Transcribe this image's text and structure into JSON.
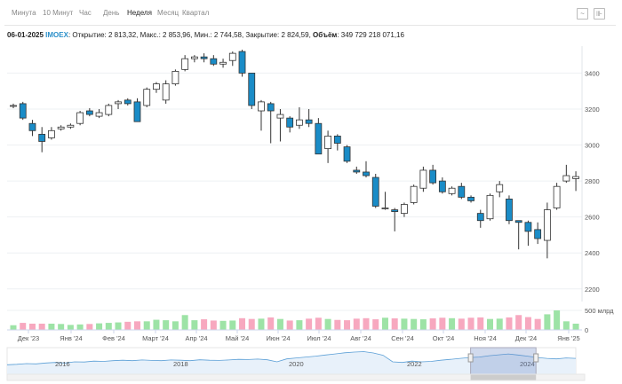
{
  "tabs": {
    "items": [
      "Минута",
      "10 Минут",
      "Час",
      "День",
      "Неделя",
      "Месяц",
      "Квартал"
    ],
    "active": "Неделя",
    "icons": [
      "line-chart-icon",
      "candlestick-chart-icon"
    ]
  },
  "info": {
    "date": "06-01-2025",
    "ticker": "IMOEX",
    "ohlc": ": Открытие: 2 813,32, Макс.: 2 853,96, Мин.: 2 744,58, Закрытие: 2 824,59,",
    "volume_label": "Объём",
    "volume_value": ": 349 729 218 071,16"
  },
  "colors": {
    "up": "#ffffff",
    "down": "#1a8cc7",
    "vol_up": "#9de3a6",
    "vol_down": "#f7a8bf",
    "ticker": "#2a8fc9"
  },
  "chart_data": {
    "type": "candlestick",
    "y_ticks": [
      2200,
      2400,
      2600,
      2800,
      3000,
      3200,
      3400
    ],
    "ylim": [
      2130,
      3550
    ],
    "volume_label": "500 млрд",
    "volume_ticks": [
      "500 млрд",
      "0"
    ],
    "x_labels": [
      "Дек '23",
      "Янв '24",
      "Фев '24",
      "Март '24",
      "Апр '24",
      "Май '24",
      "Июн '24",
      "Июл '24",
      "Авг '24",
      "Сен '24",
      "Окт '24",
      "Ноя '24",
      "Дек '24",
      "Янв '25"
    ],
    "navigator_labels": [
      "2016",
      "2018",
      "2020",
      "2022",
      "2024"
    ],
    "candles": [
      [
        3215,
        3230,
        3205,
        3220
      ],
      [
        3230,
        3240,
        3140,
        3150
      ],
      [
        3120,
        3140,
        3050,
        3080
      ],
      [
        3060,
        3100,
        2960,
        3020
      ],
      [
        3040,
        3100,
        3030,
        3080
      ],
      [
        3090,
        3110,
        3080,
        3100
      ],
      [
        3100,
        3120,
        3090,
        3110
      ],
      [
        3120,
        3190,
        3110,
        3180
      ],
      [
        3190,
        3205,
        3160,
        3170
      ],
      [
        3160,
        3200,
        3150,
        3180
      ],
      [
        3170,
        3230,
        3160,
        3220
      ],
      [
        3230,
        3250,
        3200,
        3240
      ],
      [
        3250,
        3260,
        3220,
        3230
      ],
      [
        3240,
        3260,
        3130,
        3130
      ],
      [
        3220,
        3320,
        3210,
        3310
      ],
      [
        3310,
        3350,
        3290,
        3340
      ],
      [
        3250,
        3360,
        3230,
        3340
      ],
      [
        3340,
        3420,
        3330,
        3410
      ],
      [
        3420,
        3500,
        3410,
        3480
      ],
      [
        3480,
        3500,
        3460,
        3490
      ],
      [
        3490,
        3510,
        3460,
        3480
      ],
      [
        3480,
        3500,
        3440,
        3450
      ],
      [
        3450,
        3480,
        3430,
        3460
      ],
      [
        3470,
        3520,
        3440,
        3510
      ],
      [
        3520,
        3530,
        3380,
        3400
      ],
      [
        3400,
        3400,
        3200,
        3220
      ],
      [
        3190,
        3250,
        3080,
        3240
      ],
      [
        3230,
        3240,
        3010,
        3190
      ],
      [
        3150,
        3200,
        3020,
        3170
      ],
      [
        3150,
        3160,
        3070,
        3100
      ],
      [
        3110,
        3210,
        3090,
        3140
      ],
      [
        3140,
        3200,
        3100,
        3120
      ],
      [
        3120,
        3150,
        2950,
        2950
      ],
      [
        2980,
        3080,
        2900,
        3050
      ],
      [
        3050,
        3060,
        2970,
        3010
      ],
      [
        2990,
        3000,
        2900,
        2910
      ],
      [
        2860,
        2880,
        2840,
        2850
      ],
      [
        2850,
        2910,
        2820,
        2830
      ],
      [
        2820,
        2840,
        2650,
        2660
      ],
      [
        2650,
        2740,
        2640,
        2650
      ],
      [
        2640,
        2650,
        2520,
        2630
      ],
      [
        2620,
        2680,
        2600,
        2670
      ],
      [
        2680,
        2780,
        2670,
        2770
      ],
      [
        2760,
        2880,
        2740,
        2860
      ],
      [
        2860,
        2890,
        2780,
        2790
      ],
      [
        2800,
        2820,
        2730,
        2740
      ],
      [
        2730,
        2770,
        2720,
        2760
      ],
      [
        2770,
        2790,
        2700,
        2710
      ],
      [
        2710,
        2720,
        2680,
        2690
      ],
      [
        2620,
        2640,
        2540,
        2580
      ],
      [
        2590,
        2730,
        2580,
        2720
      ],
      [
        2740,
        2800,
        2710,
        2780
      ],
      [
        2700,
        2720,
        2560,
        2580
      ],
      [
        2580,
        2580,
        2420,
        2570
      ],
      [
        2570,
        2580,
        2440,
        2520
      ],
      [
        2530,
        2570,
        2450,
        2480
      ],
      [
        2470,
        2680,
        2370,
        2640
      ],
      [
        2650,
        2790,
        2640,
        2770
      ],
      [
        2800,
        2890,
        2790,
        2830
      ],
      [
        2813.32,
        2853.96,
        2744.58,
        2824.59
      ]
    ],
    "volumes": [
      0.3,
      0.45,
      0.4,
      0.4,
      0.4,
      0.38,
      0.32,
      0.35,
      0.38,
      0.42,
      0.45,
      0.48,
      0.52,
      0.55,
      0.55,
      0.65,
      0.62,
      0.55,
      0.95,
      0.62,
      0.68,
      0.6,
      0.58,
      0.6,
      0.75,
      0.7,
      0.72,
      0.8,
      0.7,
      0.6,
      0.62,
      0.72,
      0.78,
      0.7,
      0.64,
      0.62,
      0.72,
      0.75,
      0.68,
      0.78,
      0.74,
      0.72,
      0.7,
      0.68,
      0.74,
      0.78,
      0.75,
      0.72,
      0.78,
      0.8,
      0.7,
      0.72,
      0.8,
      0.95,
      0.82,
      0.7,
      1.0,
      1.25,
      0.55,
      0.4
    ],
    "navigator_series": [
      0.42,
      0.44,
      0.47,
      0.46,
      0.5,
      0.52,
      0.5,
      0.55,
      0.54,
      0.58,
      0.57,
      0.6,
      0.62,
      0.6,
      0.63,
      0.61,
      0.6,
      0.63,
      0.62,
      0.6,
      0.64,
      0.62,
      0.61,
      0.63,
      0.66,
      0.65,
      0.67,
      0.64,
      0.55,
      0.68,
      0.72,
      0.76,
      0.8,
      0.85,
      0.9,
      0.95,
      0.98,
      1.0,
      0.94,
      0.84,
      0.55,
      0.52,
      0.58,
      0.55,
      0.57,
      0.62,
      0.66,
      0.7,
      0.74,
      0.76,
      0.82,
      0.86,
      0.9,
      0.85,
      0.8,
      0.74,
      0.7,
      0.68,
      0.72,
      0.7
    ],
    "navigator_window": [
      0.815,
      0.93
    ]
  }
}
